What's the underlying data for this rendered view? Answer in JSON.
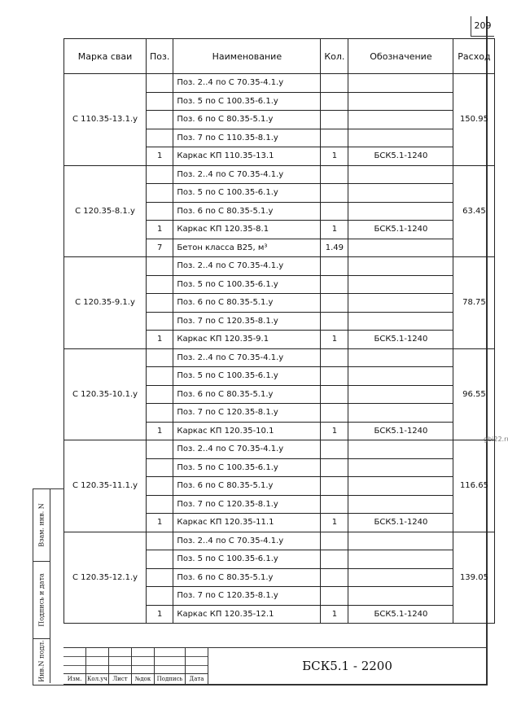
{
  "page_number": "209",
  "watermark": "gbi22.ru",
  "headers": [
    "Марка сваи",
    "Поз.",
    "Наименование",
    "Кол.",
    "Обозначение",
    "Расход"
  ],
  "groups": [
    {
      "mark": "С 110.35-13.1.у",
      "consumption": "150.95",
      "rows": [
        {
          "pos": "",
          "name": "Поз. 2..4 по С 70.35-4.1.у",
          "qty": "",
          "designation": ""
        },
        {
          "pos": "",
          "name": "Поз. 5 по С 100.35-6.1.у",
          "qty": "",
          "designation": ""
        },
        {
          "pos": "",
          "name": "Поз. 6 по С 80.35-5.1.у",
          "qty": "",
          "designation": ""
        },
        {
          "pos": "",
          "name": "Поз. 7 по С 110.35-8.1.у",
          "qty": "",
          "designation": ""
        },
        {
          "pos": "1",
          "name": "Каркас КП 110.35-13.1",
          "qty": "1",
          "designation": "БСК5.1-1240"
        }
      ]
    },
    {
      "mark": "С 120.35-8.1.у",
      "consumption": "63.45",
      "rows": [
        {
          "pos": "",
          "name": "Поз. 2..4 по С 70.35-4.1.у",
          "qty": "",
          "designation": ""
        },
        {
          "pos": "",
          "name": "Поз. 5 по С 100.35-6.1.у",
          "qty": "",
          "designation": ""
        },
        {
          "pos": "",
          "name": "Поз. 6 по С 80.35-5.1.у",
          "qty": "",
          "designation": ""
        },
        {
          "pos": "1",
          "name": "Каркас КП 120.35-8.1",
          "qty": "1",
          "designation": "БСК5.1-1240"
        },
        {
          "pos": "7",
          "name": "Бетон класса B25, м³",
          "qty": "1.49",
          "designation": ""
        }
      ]
    },
    {
      "mark": "С 120.35-9.1.у",
      "consumption": "78.75",
      "rows": [
        {
          "pos": "",
          "name": "Поз. 2..4 по С 70.35-4.1.у",
          "qty": "",
          "designation": ""
        },
        {
          "pos": "",
          "name": "Поз. 5 по С 100.35-6.1.у",
          "qty": "",
          "designation": ""
        },
        {
          "pos": "",
          "name": "Поз. 6 по С 80.35-5.1.у",
          "qty": "",
          "designation": ""
        },
        {
          "pos": "",
          "name": "Поз. 7 по С 120.35-8.1.у",
          "qty": "",
          "designation": ""
        },
        {
          "pos": "1",
          "name": "Каркас КП 120.35-9.1",
          "qty": "1",
          "designation": "БСК5.1-1240"
        }
      ]
    },
    {
      "mark": "С 120.35-10.1.у",
      "consumption": "96.55",
      "rows": [
        {
          "pos": "",
          "name": "Поз. 2..4 по С 70.35-4.1.у",
          "qty": "",
          "designation": ""
        },
        {
          "pos": "",
          "name": "Поз. 5 по С 100.35-6.1.у",
          "qty": "",
          "designation": ""
        },
        {
          "pos": "",
          "name": "Поз. 6 по С 80.35-5.1.у",
          "qty": "",
          "designation": ""
        },
        {
          "pos": "",
          "name": "Поз. 7 по С 120.35-8.1.у",
          "qty": "",
          "designation": ""
        },
        {
          "pos": "1",
          "name": "Каркас КП 120.35-10.1",
          "qty": "1",
          "designation": "БСК5.1-1240"
        }
      ]
    },
    {
      "mark": "С 120.35-11.1.у",
      "consumption": "116.65",
      "rows": [
        {
          "pos": "",
          "name": "Поз. 2..4 по С 70.35-4.1.у",
          "qty": "",
          "designation": ""
        },
        {
          "pos": "",
          "name": "Поз. 5 по С 100.35-6.1.у",
          "qty": "",
          "designation": ""
        },
        {
          "pos": "",
          "name": "Поз. 6 по С 80.35-5.1.у",
          "qty": "",
          "designation": ""
        },
        {
          "pos": "",
          "name": "Поз. 7 по С 120.35-8.1.у",
          "qty": "",
          "designation": ""
        },
        {
          "pos": "1",
          "name": "Каркас КП 120.35-11.1",
          "qty": "1",
          "designation": "БСК5.1-1240"
        }
      ]
    },
    {
      "mark": "С 120.35-12.1.у",
      "consumption": "139.05",
      "rows": [
        {
          "pos": "",
          "name": "Поз. 2..4 по С 70.35-4.1.у",
          "qty": "",
          "designation": ""
        },
        {
          "pos": "",
          "name": "Поз. 5 по С 100.35-6.1.у",
          "qty": "",
          "designation": ""
        },
        {
          "pos": "",
          "name": "Поз. 6 по С 80.35-5.1.у",
          "qty": "",
          "designation": ""
        },
        {
          "pos": "",
          "name": "Поз. 7 по С 120.35-8.1.у",
          "qty": "",
          "designation": ""
        },
        {
          "pos": "1",
          "name": "Каркас КП 120.35-12.1",
          "qty": "1",
          "designation": "БСК5.1-1240"
        }
      ]
    }
  ],
  "side_stamp": [
    "Взам. инв. N",
    "Подпись и дата",
    "Инв.N подл."
  ],
  "title_block": {
    "labels": [
      "Изм.",
      "Кол.уч",
      "Лист",
      "№док",
      "Подпись",
      "Дата"
    ],
    "document_code": "БСК5.1 - 2200"
  }
}
